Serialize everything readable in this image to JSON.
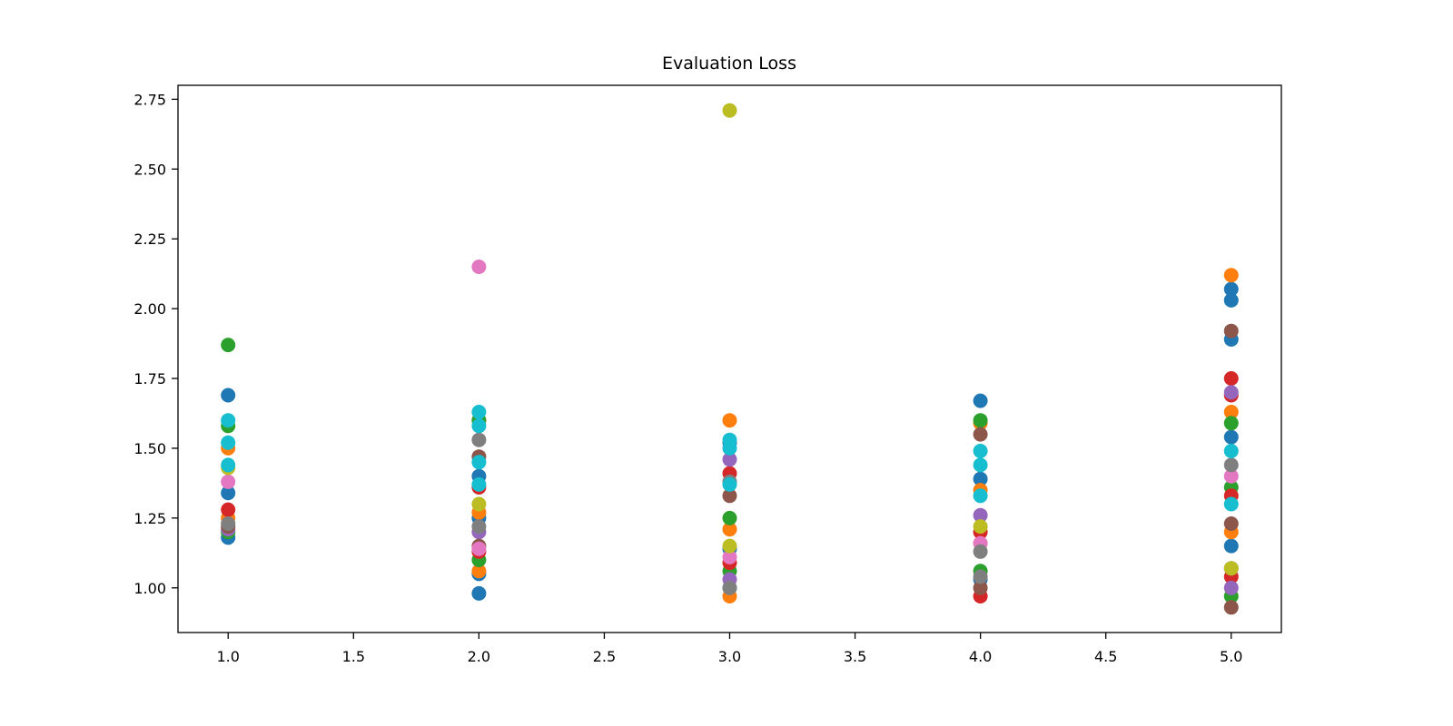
{
  "chart_data": {
    "type": "scatter",
    "title": "Evaluation Loss",
    "xlabel": "",
    "ylabel": "",
    "xlim": [
      0.8,
      5.2
    ],
    "ylim": [
      0.84,
      2.8
    ],
    "x_ticks": [
      1.0,
      1.5,
      2.0,
      2.5,
      3.0,
      3.5,
      4.0,
      4.5,
      5.0
    ],
    "x_tick_labels": [
      "1.0",
      "1.5",
      "2.0",
      "2.5",
      "3.0",
      "3.5",
      "4.0",
      "4.5",
      "5.0"
    ],
    "y_ticks": [
      1.0,
      1.25,
      1.5,
      1.75,
      2.0,
      2.25,
      2.5,
      2.75
    ],
    "y_tick_labels": [
      "1.00",
      "1.25",
      "1.50",
      "1.75",
      "2.00",
      "2.25",
      "2.50",
      "2.75"
    ],
    "grid": false,
    "legend": "none",
    "colors": [
      "#1f77b4",
      "#ff7f0e",
      "#2ca02c",
      "#d62728",
      "#9467bd",
      "#8c564b",
      "#e377c2",
      "#7f7f7f",
      "#bcbd22",
      "#17becf"
    ],
    "series": [
      {
        "color": "#1f77b4",
        "points": [
          [
            1,
            1.18
          ],
          [
            1,
            1.34
          ],
          [
            1,
            1.69
          ],
          [
            2,
            0.98
          ],
          [
            2,
            1.05
          ],
          [
            2,
            1.25
          ],
          [
            2,
            1.4
          ],
          [
            3,
            1.0
          ],
          [
            3,
            1.14
          ],
          [
            3,
            1.52
          ],
          [
            4,
            1.03
          ],
          [
            4,
            1.39
          ],
          [
            4,
            1.67
          ],
          [
            5,
            1.15
          ],
          [
            5,
            1.54
          ],
          [
            5,
            1.89
          ],
          [
            5,
            2.03
          ],
          [
            5,
            2.07
          ]
        ]
      },
      {
        "color": "#ff7f0e",
        "points": [
          [
            1,
            1.25
          ],
          [
            1,
            1.5
          ],
          [
            2,
            1.06
          ],
          [
            2,
            1.27
          ],
          [
            2,
            1.6
          ],
          [
            3,
            0.97
          ],
          [
            3,
            1.21
          ],
          [
            3,
            1.6
          ],
          [
            4,
            1.16
          ],
          [
            4,
            1.35
          ],
          [
            4,
            1.59
          ],
          [
            5,
            1.2
          ],
          [
            5,
            1.63
          ],
          [
            5,
            2.12
          ]
        ]
      },
      {
        "color": "#2ca02c",
        "points": [
          [
            1,
            1.2
          ],
          [
            1,
            1.58
          ],
          [
            1,
            1.87
          ],
          [
            2,
            1.1
          ],
          [
            2,
            1.6
          ],
          [
            3,
            1.06
          ],
          [
            3,
            1.25
          ],
          [
            4,
            1.06
          ],
          [
            4,
            1.6
          ],
          [
            5,
            0.97
          ],
          [
            5,
            1.36
          ],
          [
            5,
            1.59
          ]
        ]
      },
      {
        "color": "#d62728",
        "points": [
          [
            1,
            1.28
          ],
          [
            2,
            1.13
          ],
          [
            2,
            1.36
          ],
          [
            3,
            1.09
          ],
          [
            3,
            1.41
          ],
          [
            4,
            0.97
          ],
          [
            4,
            1.2
          ],
          [
            5,
            1.04
          ],
          [
            5,
            1.33
          ],
          [
            5,
            1.69
          ],
          [
            5,
            1.75
          ]
        ]
      },
      {
        "color": "#9467bd",
        "points": [
          [
            1,
            1.21
          ],
          [
            2,
            1.2
          ],
          [
            3,
            1.03
          ],
          [
            3,
            1.46
          ],
          [
            4,
            1.26
          ],
          [
            5,
            1.0
          ],
          [
            5,
            1.7
          ]
        ]
      },
      {
        "color": "#8c564b",
        "points": [
          [
            1,
            1.22
          ],
          [
            2,
            1.15
          ],
          [
            2,
            1.47
          ],
          [
            3,
            1.33
          ],
          [
            4,
            1.0
          ],
          [
            4,
            1.55
          ],
          [
            5,
            0.93
          ],
          [
            5,
            1.23
          ],
          [
            5,
            1.92
          ]
        ]
      },
      {
        "color": "#e377c2",
        "points": [
          [
            1,
            1.38
          ],
          [
            2,
            2.15
          ],
          [
            2,
            1.14
          ],
          [
            3,
            1.11
          ],
          [
            4,
            1.16
          ],
          [
            5,
            1.4
          ]
        ]
      },
      {
        "color": "#7f7f7f",
        "points": [
          [
            1,
            1.23
          ],
          [
            2,
            1.22
          ],
          [
            2,
            1.53
          ],
          [
            3,
            1.0
          ],
          [
            3,
            1.38
          ],
          [
            4,
            1.04
          ],
          [
            4,
            1.13
          ],
          [
            5,
            1.07
          ],
          [
            5,
            1.44
          ]
        ]
      },
      {
        "color": "#bcbd22",
        "points": [
          [
            1,
            1.43
          ],
          [
            2,
            1.3
          ],
          [
            3,
            1.15
          ],
          [
            3,
            2.71
          ],
          [
            4,
            1.22
          ],
          [
            5,
            1.07
          ]
        ]
      },
      {
        "color": "#17becf",
        "points": [
          [
            1,
            1.44
          ],
          [
            1,
            1.52
          ],
          [
            1,
            1.6
          ],
          [
            2,
            1.37
          ],
          [
            2,
            1.45
          ],
          [
            2,
            1.58
          ],
          [
            2,
            1.63
          ],
          [
            3,
            1.37
          ],
          [
            3,
            1.5
          ],
          [
            3,
            1.53
          ],
          [
            4,
            1.33
          ],
          [
            4,
            1.44
          ],
          [
            4,
            1.49
          ],
          [
            5,
            1.3
          ],
          [
            5,
            1.49
          ]
        ]
      }
    ]
  }
}
